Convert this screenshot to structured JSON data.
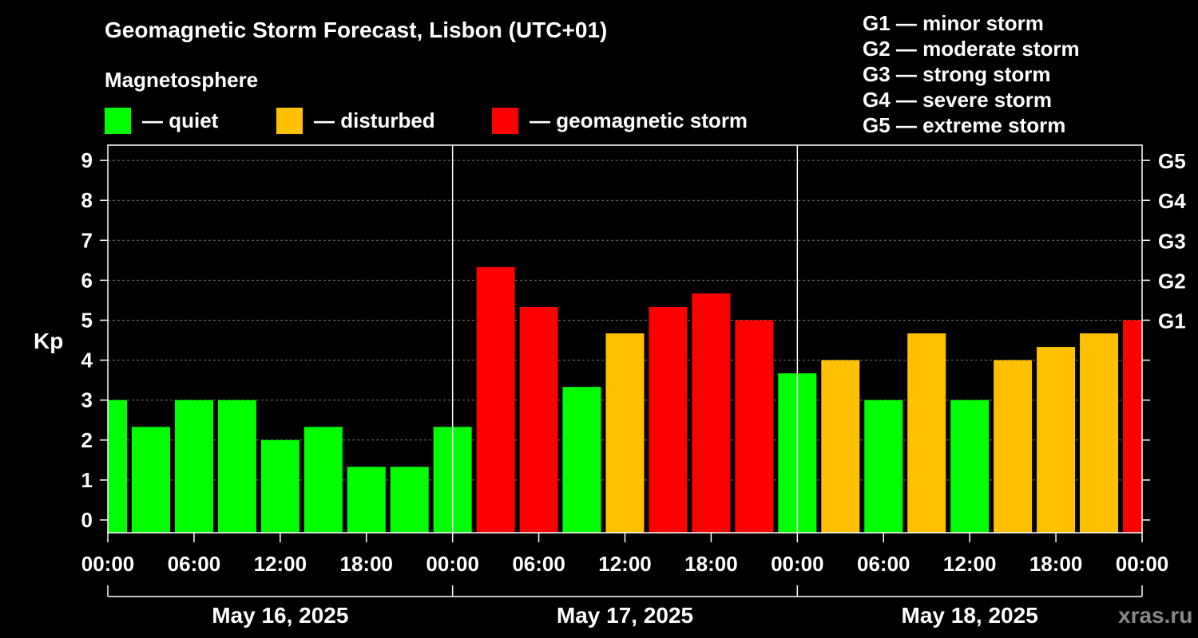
{
  "title": "Geomagnetic Storm Forecast, Lisbon (UTC+01)",
  "magnetosphere": {
    "heading": "Magnetosphere",
    "items": [
      {
        "label": "— quiet",
        "color": "#00ff00"
      },
      {
        "label": "— disturbed",
        "color": "#ffc000"
      },
      {
        "label": "— geomagnetic storm",
        "color": "#ff0000"
      }
    ]
  },
  "g_scale": [
    "G1 — minor storm",
    "G2 — moderate storm",
    "G3 — strong storm",
    "G4 — severe storm",
    "G5 — extreme storm"
  ],
  "watermark": "xras.ru",
  "chart_data": {
    "type": "bar",
    "ylabel": "Kp",
    "ylim": [
      0,
      9
    ],
    "yticks": [
      "0",
      "1",
      "2",
      "3",
      "4",
      "5",
      "6",
      "7",
      "8",
      "9"
    ],
    "right_ticks": [
      {
        "value": 5,
        "label": "G1"
      },
      {
        "value": 6,
        "label": "G2"
      },
      {
        "value": 7,
        "label": "G3"
      },
      {
        "value": 8,
        "label": "G4"
      },
      {
        "value": 9,
        "label": "G5"
      }
    ],
    "xtick_labels": [
      "00:00",
      "06:00",
      "12:00",
      "18:00",
      "00:00",
      "06:00",
      "12:00",
      "18:00",
      "00:00",
      "06:00",
      "12:00",
      "18:00",
      "00:00"
    ],
    "days": [
      "May 16, 2025",
      "May 17, 2025",
      "May 18, 2025"
    ],
    "grid": "horizontal dashed at integer Kp",
    "colors": {
      "quiet": "#00ff00",
      "disturbed": "#ffc000",
      "storm": "#ff0000"
    },
    "bars": [
      {
        "value": 3.0,
        "level": "quiet"
      },
      {
        "value": 2.33,
        "level": "quiet"
      },
      {
        "value": 3.0,
        "level": "quiet"
      },
      {
        "value": 3.0,
        "level": "quiet"
      },
      {
        "value": 2.0,
        "level": "quiet"
      },
      {
        "value": 2.33,
        "level": "quiet"
      },
      {
        "value": 1.33,
        "level": "quiet"
      },
      {
        "value": 1.33,
        "level": "quiet"
      },
      {
        "value": 2.33,
        "level": "quiet"
      },
      {
        "value": 6.33,
        "level": "storm"
      },
      {
        "value": 5.33,
        "level": "storm"
      },
      {
        "value": 3.33,
        "level": "quiet"
      },
      {
        "value": 4.67,
        "level": "disturbed"
      },
      {
        "value": 5.33,
        "level": "storm"
      },
      {
        "value": 5.67,
        "level": "storm"
      },
      {
        "value": 5.0,
        "level": "storm"
      },
      {
        "value": 3.67,
        "level": "quiet"
      },
      {
        "value": 4.0,
        "level": "disturbed"
      },
      {
        "value": 3.0,
        "level": "quiet"
      },
      {
        "value": 4.67,
        "level": "disturbed"
      },
      {
        "value": 3.0,
        "level": "quiet"
      },
      {
        "value": 4.0,
        "level": "disturbed"
      },
      {
        "value": 4.33,
        "level": "disturbed"
      },
      {
        "value": 4.67,
        "level": "disturbed"
      },
      {
        "value": 5.0,
        "level": "storm"
      }
    ]
  }
}
